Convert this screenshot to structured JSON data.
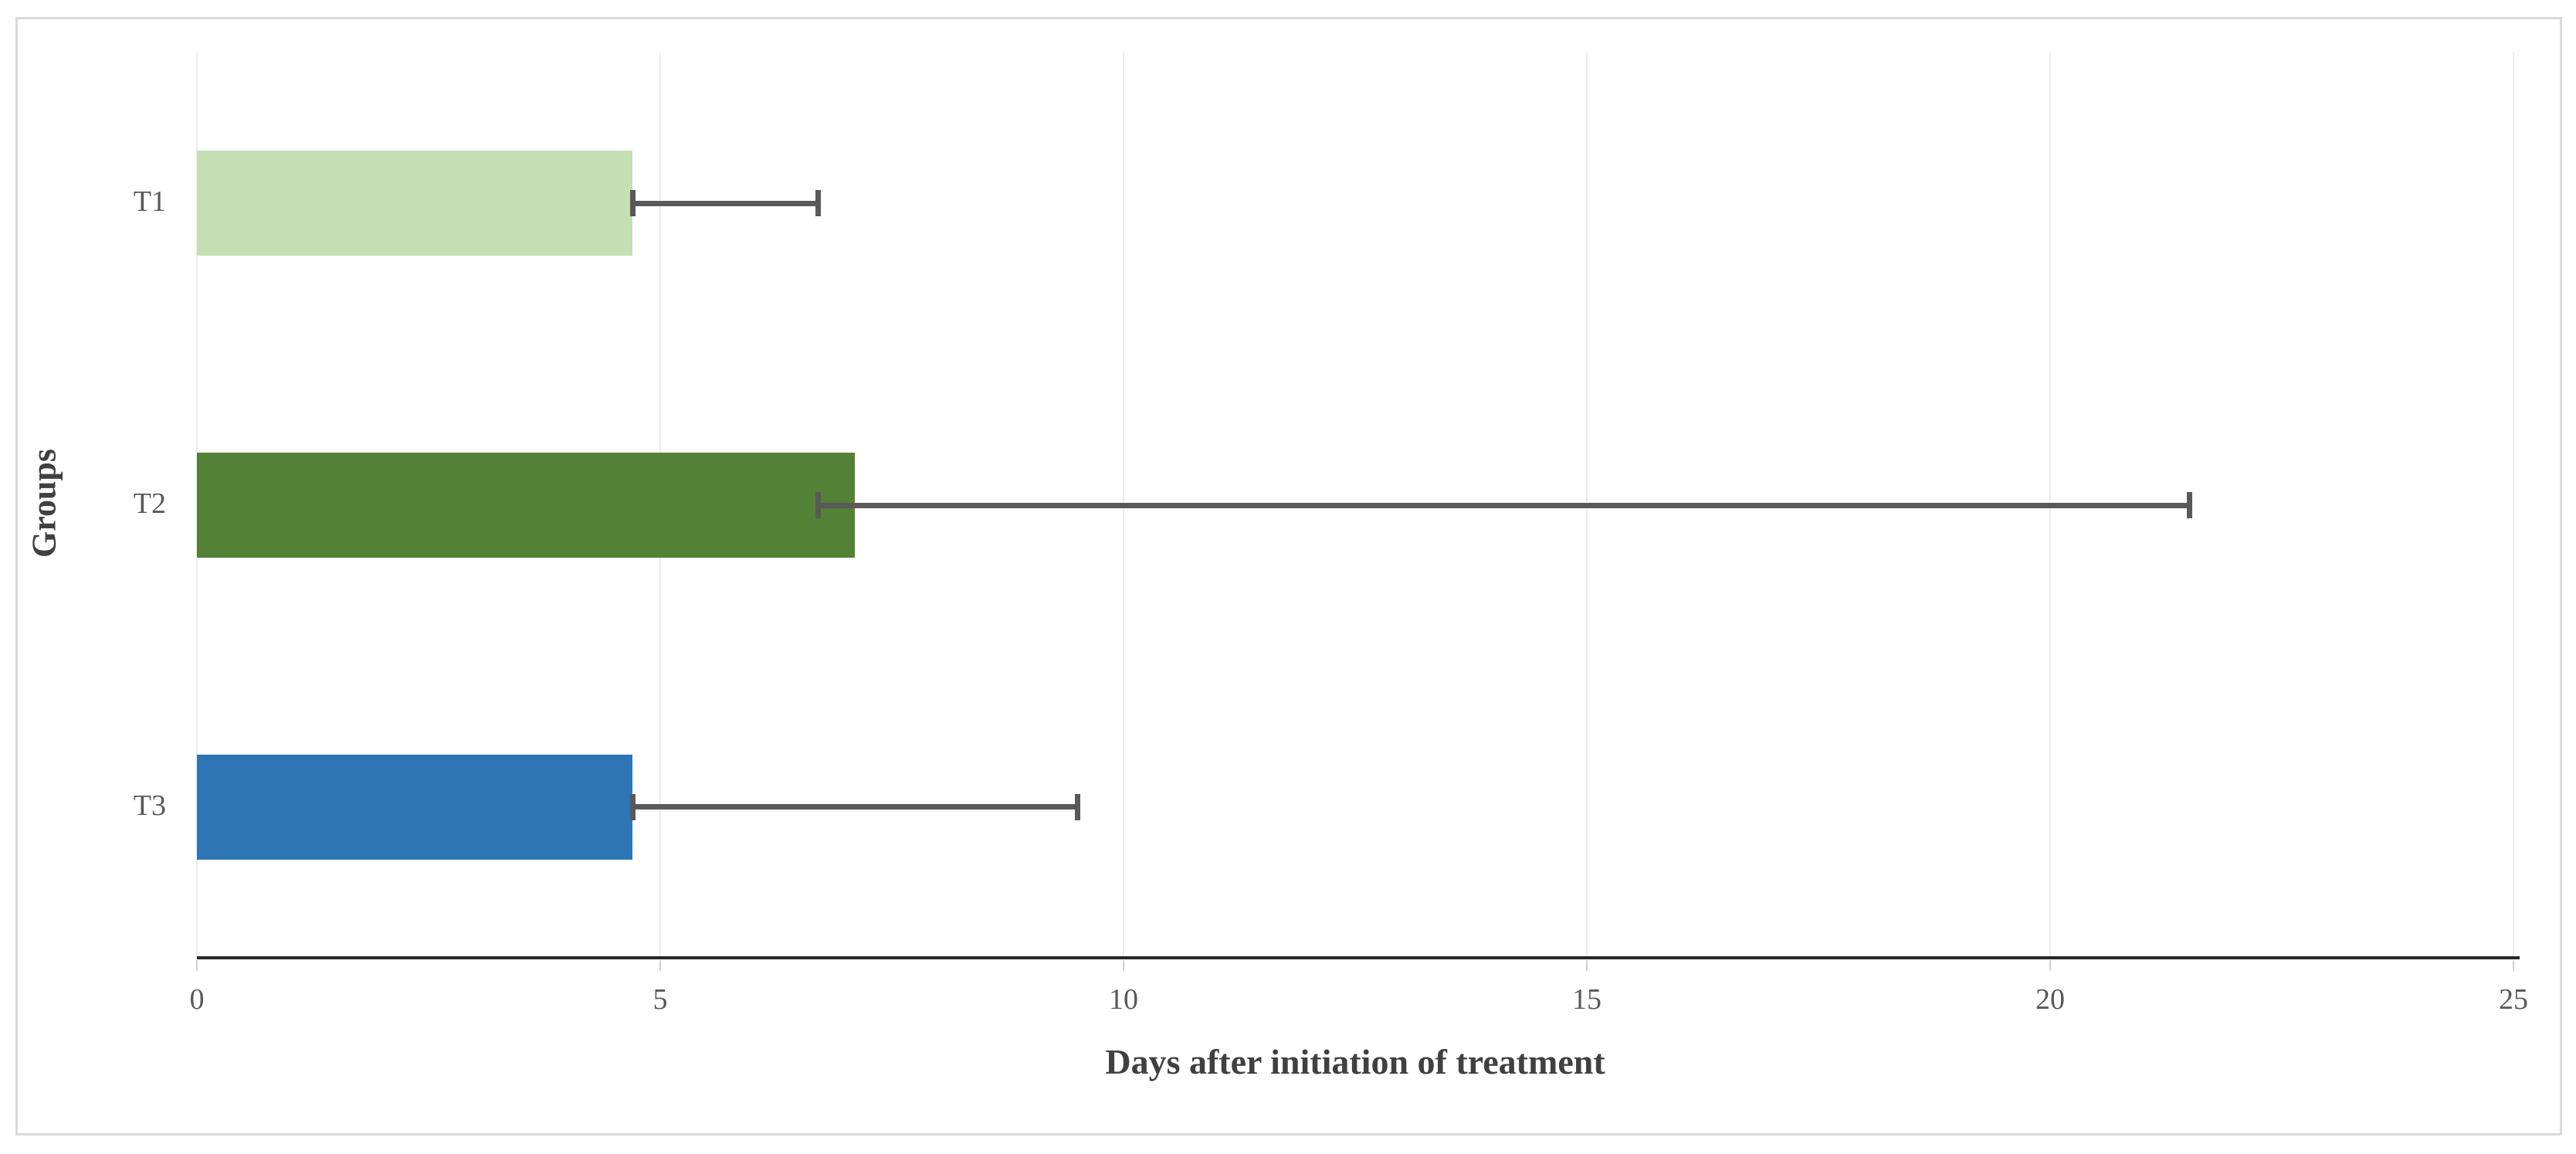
{
  "figure": {
    "description": "Horizontal bar chart with error bars inside a light gray frame"
  },
  "chart_data": {
    "type": "bar",
    "orientation": "horizontal",
    "title": "",
    "xlabel": "Days after initiation of treatment",
    "ylabel": "Groups",
    "categories": [
      "T1",
      "T2",
      "T3"
    ],
    "values": [
      4.7,
      7.1,
      4.7
    ],
    "error_bars": [
      {
        "low": 4.7,
        "high": 6.7
      },
      {
        "low": 6.7,
        "high": 21.5
      },
      {
        "low": 4.7,
        "high": 9.5
      }
    ],
    "bar_colors": [
      "#c5e0b4",
      "#538135",
      "#2e75b6"
    ],
    "xlim": [
      0,
      25
    ],
    "x_ticks": [
      "0",
      "5",
      "10",
      "15",
      "20",
      "25"
    ],
    "grid": "vertical-light",
    "legend": "none",
    "colors": {
      "error_bar": "#595959",
      "axis_line": "#262626",
      "gridline": "#ececec",
      "tick_label": "#595959",
      "axis_title": "#404040",
      "frame_border": "#d9d9d9",
      "background": "#ffffff"
    }
  }
}
